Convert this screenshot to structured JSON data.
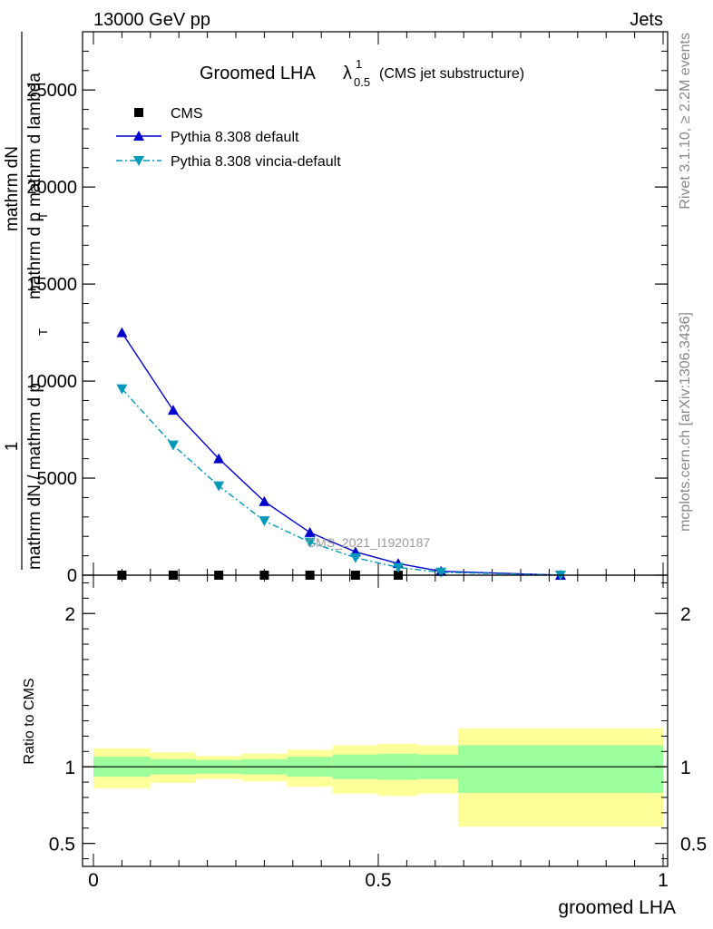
{
  "header": {
    "energy_label": "13000 GeV pp",
    "category_label": "Jets",
    "rivet_label": "Rivet 3.1.10, ≥ 2.2M events",
    "mcplots_label": "mcplots.cern.ch [arXiv:1306.3436]",
    "analysis_label": "CMS_2021_I1920187"
  },
  "chart_data": [
    {
      "type": "line",
      "title_main": "Groomed LHA",
      "title_lambda": "λ",
      "title_sup": "1",
      "title_sub": "0.5",
      "title_note": "(CMS jet substructure)",
      "ylabel_parts": [
        "1",
        "mathrm dN / mathrm d p",
        "T",
        "mathrm dN",
        "mathrm d p",
        "T",
        "mathrm d lambda"
      ],
      "xlim": [
        0,
        1
      ],
      "ylim": [
        0,
        28000
      ],
      "yticks": [
        {
          "value": 0,
          "label": "0"
        },
        {
          "value": 5000,
          "label": "5000"
        },
        {
          "value": 10000,
          "label": "10000"
        },
        {
          "value": 15000,
          "label": "15000"
        },
        {
          "value": 20000,
          "label": "20000"
        },
        {
          "value": 25000,
          "label": "25000"
        }
      ],
      "legend_position": "top-left",
      "series": [
        {
          "name": "CMS",
          "marker": "square",
          "color": "#000000",
          "x": [
            0.05,
            0.14,
            0.22,
            0.3,
            0.38,
            0.46,
            0.535
          ],
          "y": [
            0,
            0,
            0,
            0,
            0,
            0,
            0
          ]
        },
        {
          "name": "Pythia 8.308 default",
          "marker": "triangle-up",
          "color": "#0000cc",
          "line": "solid",
          "x": [
            0.05,
            0.14,
            0.22,
            0.3,
            0.38,
            0.46,
            0.535,
            0.61,
            0.82
          ],
          "y": [
            12500,
            8500,
            6000,
            3800,
            2200,
            1200,
            600,
            200,
            0
          ]
        },
        {
          "name": "Pythia 8.308 vincia-default",
          "marker": "triangle-down",
          "color": "#0099bb",
          "line": "dash-dot",
          "x": [
            0.05,
            0.14,
            0.22,
            0.3,
            0.38,
            0.46,
            0.535,
            0.61,
            0.82
          ],
          "y": [
            9600,
            6700,
            4600,
            2800,
            1700,
            900,
            400,
            150,
            0
          ]
        }
      ]
    },
    {
      "type": "area",
      "ylabel": "Ratio to CMS",
      "xlabel": "groomed LHA",
      "xlim": [
        0,
        1
      ],
      "ylim": [
        0.35,
        2.25
      ],
      "yticks": [
        {
          "value": 0.5,
          "label": "0.5"
        },
        {
          "value": 1,
          "label": "1"
        },
        {
          "value": 2,
          "label": "2"
        }
      ],
      "xticks": [
        {
          "value": 0,
          "label": "0"
        },
        {
          "value": 0.5,
          "label": "0.5"
        },
        {
          "value": 1,
          "label": "1"
        }
      ],
      "bands": [
        {
          "x0": 0.0,
          "x1": 0.1,
          "inner": [
            0.935,
            1.065
          ],
          "outer": [
            0.86,
            1.12
          ]
        },
        {
          "x0": 0.1,
          "x1": 0.18,
          "inner": [
            0.95,
            1.05
          ],
          "outer": [
            0.895,
            1.095
          ]
        },
        {
          "x0": 0.18,
          "x1": 0.26,
          "inner": [
            0.955,
            1.045
          ],
          "outer": [
            0.92,
            1.07
          ]
        },
        {
          "x0": 0.26,
          "x1": 0.34,
          "inner": [
            0.95,
            1.05
          ],
          "outer": [
            0.905,
            1.085
          ]
        },
        {
          "x0": 0.34,
          "x1": 0.42,
          "inner": [
            0.935,
            1.065
          ],
          "outer": [
            0.87,
            1.11
          ]
        },
        {
          "x0": 0.42,
          "x1": 0.5,
          "inner": [
            0.92,
            1.08
          ],
          "outer": [
            0.825,
            1.14
          ]
        },
        {
          "x0": 0.5,
          "x1": 0.57,
          "inner": [
            0.915,
            1.085
          ],
          "outer": [
            0.81,
            1.15
          ]
        },
        {
          "x0": 0.57,
          "x1": 0.64,
          "inner": [
            0.92,
            1.08
          ],
          "outer": [
            0.825,
            1.14
          ]
        },
        {
          "x0": 0.64,
          "x1": 1.0,
          "inner": [
            0.83,
            1.14
          ],
          "outer": [
            0.61,
            1.25
          ]
        }
      ],
      "colors": {
        "inner": "#9cff9c",
        "outer": "#ffff99"
      }
    }
  ]
}
